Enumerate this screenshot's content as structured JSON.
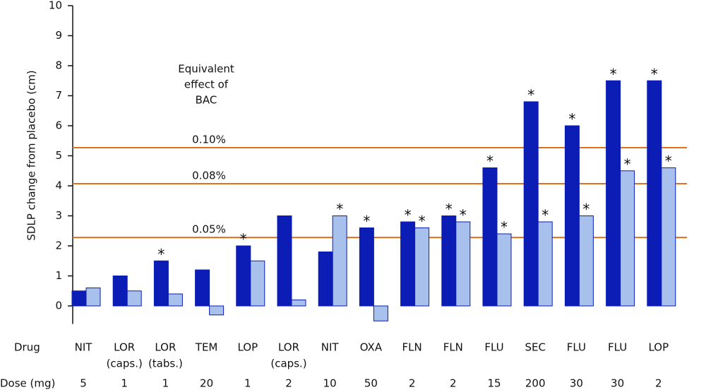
{
  "chart_data": {
    "type": "bar",
    "y_label": "SDLP change from placebo (cm)",
    "ylim": [
      -0.6,
      10
    ],
    "yticks": [
      0,
      1,
      2,
      3,
      4,
      5,
      6,
      7,
      8,
      9,
      10
    ],
    "row_labels": {
      "drug": "Drug",
      "dose": "Dose (mg)"
    },
    "drugs": [
      [
        "NIT"
      ],
      [
        "LOR",
        "(caps.)"
      ],
      [
        "LOR",
        "(tabs.)"
      ],
      [
        "TEM"
      ],
      [
        "LOP"
      ],
      [
        "LOR",
        "(caps.)"
      ],
      [
        "NIT"
      ],
      [
        "OXA"
      ],
      [
        "FLN"
      ],
      [
        "FLN"
      ],
      [
        "FLU"
      ],
      [
        "SEC"
      ],
      [
        "FLU"
      ],
      [
        "FLU"
      ],
      [
        "LOP"
      ]
    ],
    "doses": [
      5,
      1,
      1,
      20,
      1,
      2,
      10,
      50,
      2,
      2,
      15,
      200,
      30,
      30,
      2
    ],
    "series": [
      {
        "color": "#0b1db5",
        "values": [
          0.5,
          1.0,
          1.5,
          1.2,
          2.0,
          3.0,
          1.8,
          2.6,
          2.8,
          3.0,
          4.6,
          6.8,
          6.0,
          7.5,
          7.5
        ],
        "markers": [
          null,
          null,
          "*",
          null,
          "*",
          null,
          null,
          "*",
          "*",
          "*",
          "*",
          "*",
          "*",
          "*",
          "*"
        ]
      },
      {
        "color": "#a8c0ec",
        "values": [
          0.6,
          0.5,
          0.4,
          -0.3,
          1.5,
          0.2,
          3.0,
          -0.5,
          2.6,
          2.8,
          2.4,
          2.8,
          3.0,
          4.5,
          4.6
        ],
        "markers": [
          null,
          null,
          null,
          null,
          null,
          null,
          "*",
          null,
          "*",
          "*",
          "*",
          "*",
          "*",
          "*",
          "*"
        ]
      }
    ],
    "reference_title": [
      "Equivalent",
      "effect of",
      "BAC"
    ],
    "reference_lines": [
      {
        "label": "0.10%",
        "value": 5.27
      },
      {
        "label": "0.08%",
        "value": 4.07
      },
      {
        "label": "0.05%",
        "value": 2.28
      }
    ],
    "reference_color": "#e0701e"
  }
}
